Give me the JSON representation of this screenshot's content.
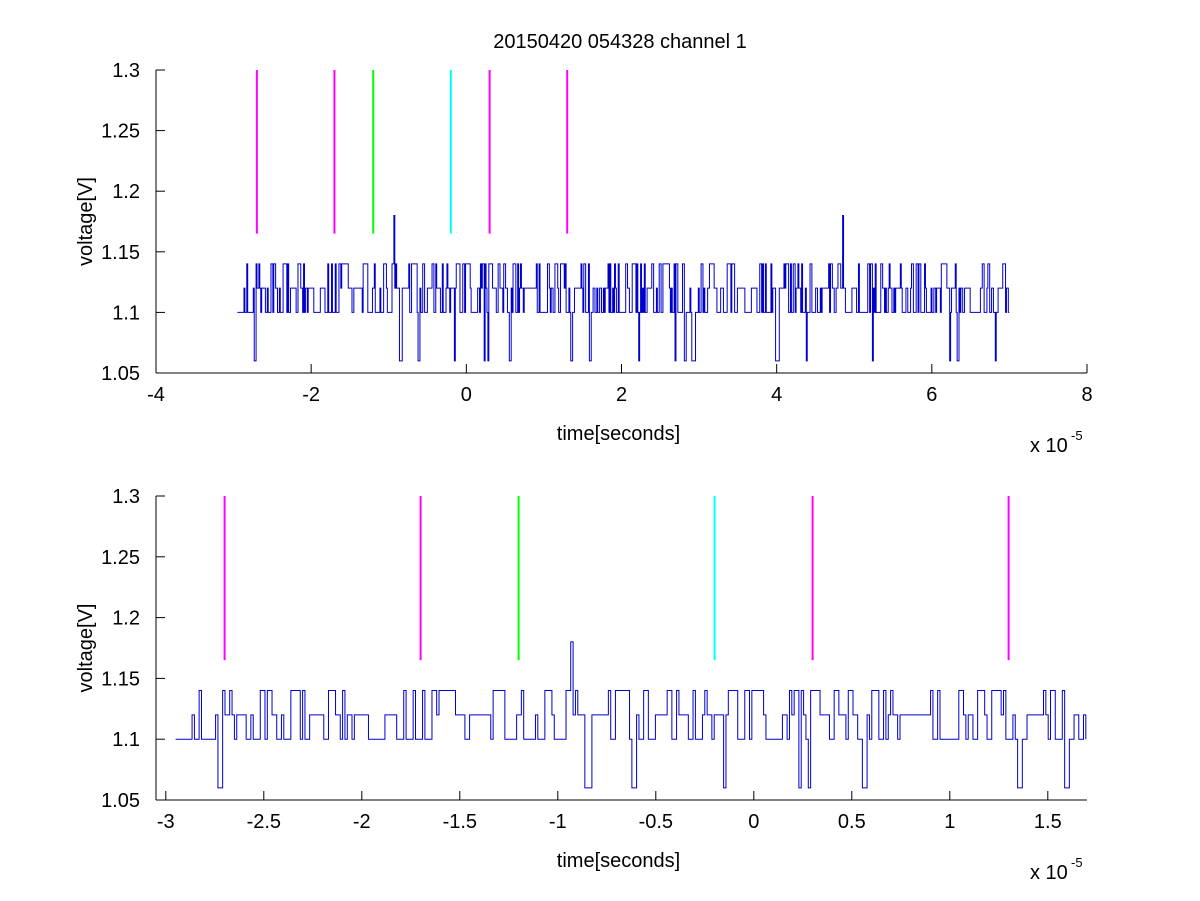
{
  "figure_title": "20150420 054328 channel 1",
  "chart_data": [
    {
      "type": "line",
      "title": "20150420 054328 channel 1",
      "xlabel": "time[seconds]",
      "ylabel": "voltage[V]",
      "x_exponent": "x 10",
      "x_exponent_power": "-5",
      "xlim": [
        -4,
        8
      ],
      "ylim": [
        1.05,
        1.3
      ],
      "xticks": [
        "-4",
        "-2",
        "0",
        "2",
        "4",
        "6",
        "8"
      ],
      "xtick_values": [
        -4,
        -2,
        0,
        2,
        4,
        6,
        8
      ],
      "yticks": [
        "1.05",
        "1.1",
        "1.15",
        "1.2",
        "1.25",
        "1.3"
      ],
      "ytick_values": [
        1.05,
        1.1,
        1.15,
        1.2,
        1.25,
        1.3
      ],
      "grid": false,
      "signal": {
        "color": "#0000cc",
        "x_start": -2.95,
        "x_end": 7.0,
        "levels": [
          1.06,
          1.1,
          1.12,
          1.14
        ],
        "baseline": 1.1,
        "spikes": [
          {
            "x": -0.93,
            "y": 1.18
          },
          {
            "x": 4.85,
            "y": 1.18
          }
        ]
      },
      "markers": [
        {
          "x": -2.7,
          "y_from": 1.165,
          "y_to": 1.3,
          "color": "#ff00ff"
        },
        {
          "x": -1.7,
          "y_from": 1.165,
          "y_to": 1.3,
          "color": "#ff00ff"
        },
        {
          "x": -1.2,
          "y_from": 1.165,
          "y_to": 1.3,
          "color": "#00ff00"
        },
        {
          "x": -0.2,
          "y_from": 1.165,
          "y_to": 1.3,
          "color": "#00ffff"
        },
        {
          "x": 0.3,
          "y_from": 1.165,
          "y_to": 1.3,
          "color": "#ff00ff"
        },
        {
          "x": 1.3,
          "y_from": 1.165,
          "y_to": 1.3,
          "color": "#ff00ff"
        }
      ]
    },
    {
      "type": "line",
      "title": "",
      "xlabel": "time[seconds]",
      "ylabel": "voltage[V]",
      "x_exponent": "x 10",
      "x_exponent_power": "-5",
      "xlim": [
        -3.05,
        1.7
      ],
      "ylim": [
        1.05,
        1.3
      ],
      "xticks": [
        "-3",
        "-2.5",
        "-2",
        "-1.5",
        "-1",
        "-0.5",
        "0",
        "0.5",
        "1",
        "1.5"
      ],
      "xtick_values": [
        -3,
        -2.5,
        -2,
        -1.5,
        -1,
        -0.5,
        0,
        0.5,
        1,
        1.5
      ],
      "yticks": [
        "1.05",
        "1.1",
        "1.15",
        "1.2",
        "1.25",
        "1.3"
      ],
      "ytick_values": [
        1.05,
        1.1,
        1.15,
        1.2,
        1.25,
        1.3
      ],
      "grid": false,
      "signal": {
        "color": "#0000cc",
        "x_start": -2.95,
        "x_end": 1.7,
        "levels": [
          1.06,
          1.1,
          1.12,
          1.14
        ],
        "baseline": 1.1,
        "spikes": [
          {
            "x": -0.93,
            "y": 1.18
          }
        ]
      },
      "markers": [
        {
          "x": -2.7,
          "y_from": 1.165,
          "y_to": 1.3,
          "color": "#ff00ff"
        },
        {
          "x": -1.7,
          "y_from": 1.165,
          "y_to": 1.3,
          "color": "#ff00ff"
        },
        {
          "x": -1.2,
          "y_from": 1.165,
          "y_to": 1.3,
          "color": "#00ff00"
        },
        {
          "x": -0.2,
          "y_from": 1.165,
          "y_to": 1.3,
          "color": "#00ffff"
        },
        {
          "x": 0.3,
          "y_from": 1.165,
          "y_to": 1.3,
          "color": "#ff00ff"
        },
        {
          "x": 1.3,
          "y_from": 1.165,
          "y_to": 1.3,
          "color": "#ff00ff"
        }
      ]
    }
  ]
}
